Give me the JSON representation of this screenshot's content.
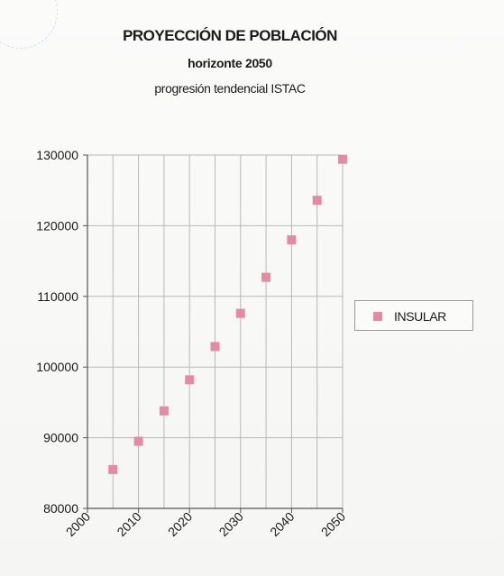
{
  "title": "PROYECCIÓN DE POBLACIÓN",
  "subtitle": "horizonte  2050",
  "note": "progresión tendencial ISTAC",
  "colors": {
    "marker": "#e58aa4",
    "grid": "#b8b8b8",
    "axis": "#555555"
  },
  "chart_data": {
    "type": "scatter",
    "x_ticks": [
      "2000",
      "2010",
      "2020",
      "2030",
      "2040",
      "2050"
    ],
    "y_ticks": [
      "80000",
      "90000",
      "100000",
      "110000",
      "120000",
      "130000"
    ],
    "xlim": [
      2000,
      2050
    ],
    "ylim": [
      80000,
      130000
    ],
    "grid": true,
    "legend_position": "right",
    "series": [
      {
        "name": "INSULAR",
        "points": [
          {
            "x": 2005,
            "y": 85500
          },
          {
            "x": 2010,
            "y": 89500
          },
          {
            "x": 2015,
            "y": 93800
          },
          {
            "x": 2020,
            "y": 98200
          },
          {
            "x": 2025,
            "y": 102900
          },
          {
            "x": 2030,
            "y": 107600
          },
          {
            "x": 2035,
            "y": 112700
          },
          {
            "x": 2040,
            "y": 118000
          },
          {
            "x": 2045,
            "y": 123600
          },
          {
            "x": 2050,
            "y": 129400
          }
        ]
      }
    ]
  }
}
